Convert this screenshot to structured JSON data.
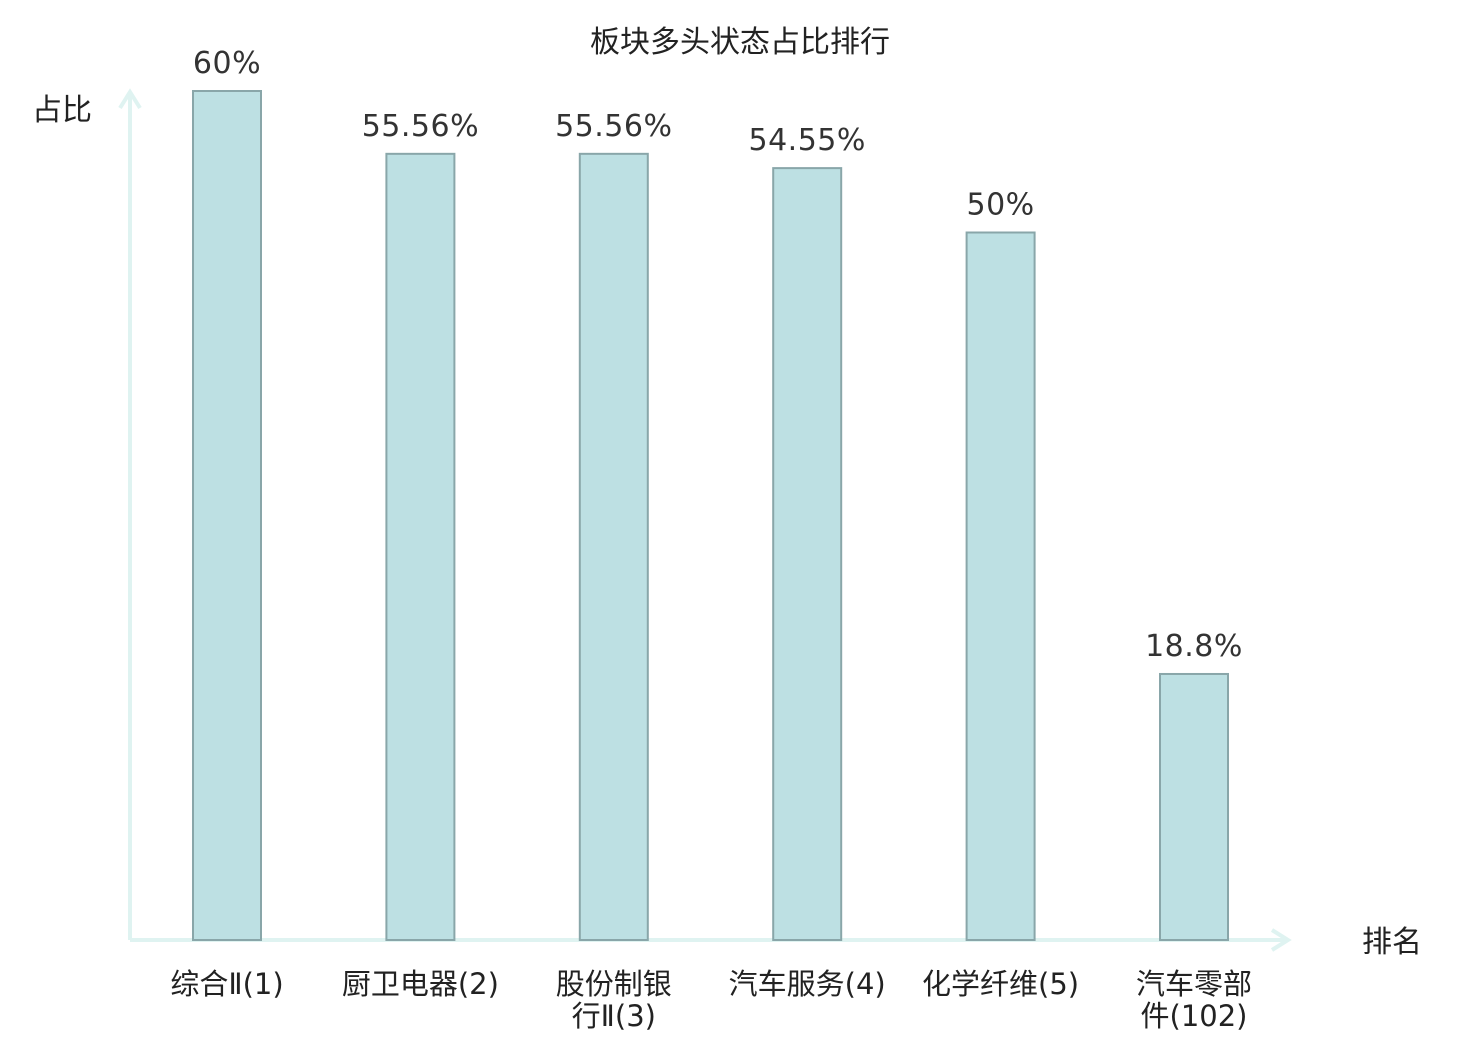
{
  "chart_data": {
    "type": "bar",
    "title": "板块多头状态占比排行",
    "xlabel": "排名",
    "ylabel": "占比",
    "categories": [
      [
        "综合Ⅱ(1)"
      ],
      [
        "厨卫电器(2)"
      ],
      [
        "股份制银",
        "行Ⅱ(3)"
      ],
      [
        "汽车服务(4)"
      ],
      [
        "化学纤维(5)"
      ],
      [
        "汽车零部",
        "件(102)"
      ]
    ],
    "values": [
      60,
      55.56,
      55.56,
      54.55,
      50,
      18.8
    ],
    "value_labels": [
      "60%",
      "55.56%",
      "55.56%",
      "54.55%",
      "50%",
      "18.8%"
    ],
    "ylim": [
      0,
      60
    ],
    "highlight_index": 5,
    "grid": false,
    "colors": {
      "bar_fill": "#bde0e3",
      "bar_stroke": "#89a6a9",
      "axis": "#dff3f1",
      "highlight_text": "#e8161b",
      "text": "#222222"
    }
  }
}
